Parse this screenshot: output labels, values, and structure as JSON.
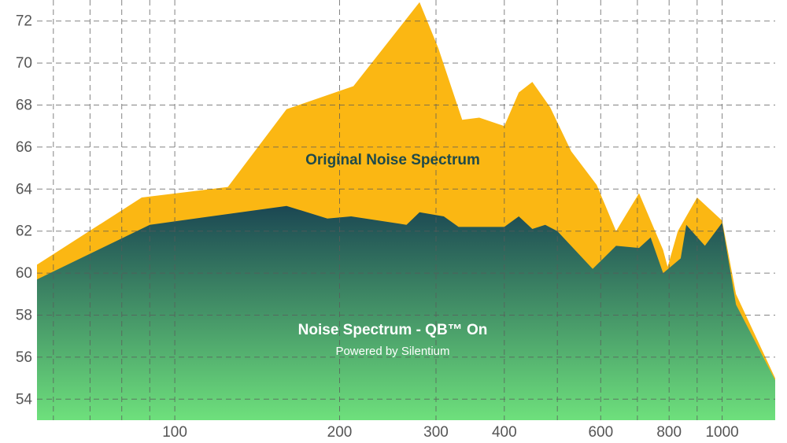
{
  "chart_data": {
    "type": "area",
    "title": "",
    "xlabel": "",
    "ylabel": "",
    "x_scale": "log",
    "xlim": [
      56,
      1250
    ],
    "ylim": [
      53,
      73
    ],
    "grid": true,
    "x_ticks": [
      100,
      200,
      300,
      400,
      600,
      800,
      1000
    ],
    "y_ticks": [
      54,
      56,
      58,
      60,
      62,
      64,
      66,
      68,
      70,
      72
    ],
    "series": [
      {
        "name": "Original Noise Spectrum",
        "color": "#fbb713",
        "label_color": "#1f4a4a",
        "x": [
          56,
          87,
          125,
          160,
          212,
          280,
          303,
          335,
          360,
          400,
          425,
          450,
          485,
          530,
          590,
          640,
          705,
          780,
          795,
          830,
          900,
          1000,
          1060,
          1250
        ],
        "y": [
          60.4,
          63.6,
          64.1,
          67.8,
          68.9,
          72.9,
          70.7,
          67.3,
          67.4,
          67.0,
          68.6,
          69.1,
          67.9,
          65.8,
          64.2,
          62.0,
          63.8,
          61.1,
          60.3,
          62.0,
          63.6,
          62.5,
          59.0,
          55.0
        ]
      },
      {
        "name": "Noise Spectrum - QB™ On",
        "subtitle": "Powered by Silentium",
        "color_top": "#1b4753",
        "color_bottom": "#6ee07c",
        "label_color": "#ffffff",
        "x": [
          56,
          90,
          160,
          190,
          210,
          265,
          280,
          310,
          330,
          400,
          425,
          450,
          475,
          500,
          580,
          640,
          705,
          740,
          780,
          840,
          860,
          930,
          1000,
          1060,
          1250
        ],
        "y": [
          59.7,
          62.3,
          63.2,
          62.6,
          62.7,
          62.3,
          62.9,
          62.7,
          62.2,
          62.2,
          62.7,
          62.1,
          62.3,
          62.0,
          60.2,
          61.3,
          61.2,
          61.7,
          60.0,
          60.7,
          62.3,
          61.3,
          62.4,
          58.5,
          54.9
        ]
      }
    ]
  }
}
